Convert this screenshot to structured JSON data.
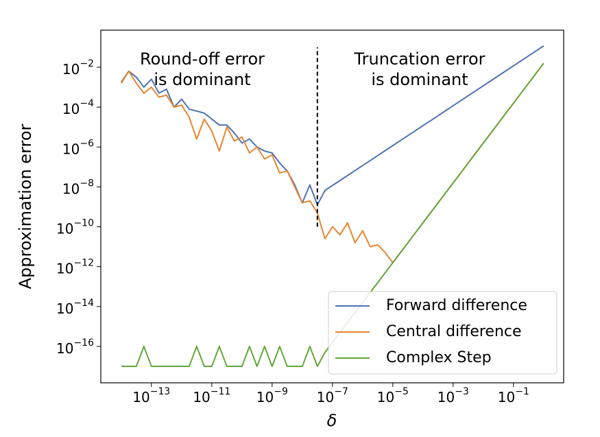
{
  "chart_data": {
    "type": "line",
    "xlabel": "δ",
    "ylabel": "Approximation error",
    "xscale": "log",
    "yscale": "log",
    "xlim": [
      2.1e-15,
      4.6
    ],
    "ylim": [
      1.5e-18,
      0.72
    ],
    "xticks": [
      {
        "value": 1e-13,
        "label": "10−13"
      },
      {
        "value": 1e-11,
        "label": "10−11"
      },
      {
        "value": 1e-09,
        "label": "10−9"
      },
      {
        "value": 1e-07,
        "label": "10−7"
      },
      {
        "value": 1e-05,
        "label": "10−5"
      },
      {
        "value": 0.001,
        "label": "10−3"
      },
      {
        "value": 0.1,
        "label": "10−1"
      }
    ],
    "yticks": [
      {
        "value": 1e-16,
        "label": "10−16"
      },
      {
        "value": 1e-14,
        "label": "10−14"
      },
      {
        "value": 1e-12,
        "label": "10−12"
      },
      {
        "value": 1e-10,
        "label": "10−10"
      },
      {
        "value": 1e-08,
        "label": "10−8"
      },
      {
        "value": 1e-06,
        "label": "10−6"
      },
      {
        "value": 0.0001,
        "label": "10−4"
      },
      {
        "value": 0.01,
        "label": "10−2"
      }
    ],
    "legend": "lower right",
    "x": [
      1e-14,
      1.78e-14,
      3.16e-14,
      5.62e-14,
      1e-13,
      1.78e-13,
      3.16e-13,
      5.62e-13,
      1e-12,
      1.78e-12,
      3.16e-12,
      5.62e-12,
      1e-11,
      1.78e-11,
      3.16e-11,
      5.62e-11,
      1e-10,
      1.78e-10,
      3.16e-10,
      5.62e-10,
      1e-09,
      1.78e-09,
      3.16e-09,
      5.62e-09,
      1e-08,
      1.78e-08,
      3.16e-08,
      5.62e-08,
      1e-07,
      1.78e-07,
      3.16e-07,
      5.62e-07,
      1e-06,
      1.78e-06,
      3.16e-06,
      5.62e-06,
      1e-05,
      1.78e-05,
      3.16e-05,
      5.62e-05,
      0.0001,
      0.000178,
      0.000316,
      0.000562,
      0.001,
      0.00178,
      0.00316,
      0.00562,
      0.01,
      0.0178,
      0.0316,
      0.0562,
      0.1,
      0.178,
      0.316,
      0.562,
      1
    ],
    "series": [
      {
        "name": "Forward difference",
        "color": "#4c72b0",
        "values": [
          0.00178,
          0.00631,
          0.00316,
          0.001,
          0.00251,
          0.000501,
          0.000794,
          0.0001,
          0.000251,
          7.94e-05,
          6.31e-05,
          5.01e-05,
          2.51e-05,
          1.26e-05,
          1.26e-05,
          5.01e-06,
          1.58e-06,
          2.51e-06,
          1e-06,
          6.31e-07,
          5.01e-07,
          1.58e-07,
          6.31e-08,
          1.26e-08,
          1.58e-09,
          1.26e-08,
          1.26e-09,
          6.6e-09,
          1.175e-08,
          2.09e-08,
          3.71e-08,
          6.6e-08,
          1.175e-07,
          2.09e-07,
          3.71e-07,
          6.6e-07,
          1.175e-06,
          2.09e-06,
          3.71e-06,
          6.6e-06,
          1.175e-05,
          2.09e-05,
          3.71e-05,
          6.6e-05,
          0.0001175,
          0.000209,
          0.000371,
          0.00066,
          0.001175,
          0.00209,
          0.00371,
          0.0066,
          0.01175,
          0.0209,
          0.0371,
          0.066,
          0.1175
        ]
      },
      {
        "name": "Central difference",
        "color": "#e88430",
        "values": [
          0.00158,
          0.00631,
          0.00158,
          0.000501,
          0.001,
          0.000316,
          0.000398,
          0.0001,
          0.000126,
          3.16e-05,
          2.51e-06,
          2.51e-05,
          6.31e-06,
          6.31e-07,
          1e-05,
          2e-06,
          3.16e-06,
          5.01e-07,
          1e-06,
          2.51e-07,
          3.98e-07,
          5.01e-08,
          6.31e-08,
          1e-08,
          1.58e-09,
          2e-09,
          5.01e-10,
          2.51e-11,
          1e-10,
          3.98e-11,
          1.58e-10,
          1.58e-11,
          6.31e-11,
          1e-11,
          1.26e-11,
          5.01e-12,
          1.58e-12,
          5e-12,
          1.58e-11,
          5e-11,
          1.58e-10,
          5e-10,
          1.58e-09,
          5e-09,
          1.58e-08,
          5e-08,
          1.58e-07,
          5e-07,
          1.58e-06,
          5e-06,
          1.58e-05,
          5e-05,
          0.000158,
          0.0005,
          0.00158,
          0.005,
          0.0158
        ]
      },
      {
        "name": "Complex Step",
        "color": "#62a63b",
        "values": [
          1e-17,
          1e-17,
          1e-17,
          1e-16,
          1e-17,
          1e-17,
          1e-17,
          1e-17,
          1e-17,
          1e-17,
          1e-16,
          1e-17,
          1e-17,
          1e-16,
          1e-17,
          1e-17,
          1e-17,
          1e-16,
          1e-17,
          1e-16,
          1e-17,
          1e-16,
          1e-17,
          1e-17,
          1e-17,
          1e-16,
          1e-17,
          5e-17,
          1.58e-16,
          5e-16,
          1.58e-15,
          5e-15,
          1.58e-14,
          5e-14,
          1.58e-13,
          5e-13,
          1.58e-12,
          5e-12,
          1.58e-11,
          5e-11,
          1.58e-10,
          5e-10,
          1.58e-09,
          5e-09,
          1.58e-08,
          5e-08,
          1.58e-07,
          5e-07,
          1.58e-06,
          5e-06,
          1.58e-05,
          5e-05,
          0.000158,
          0.0005,
          0.00158,
          0.005,
          0.0158
        ]
      }
    ],
    "vline": {
      "x": 3.16e-08,
      "ymin": 1e-10,
      "ymax": 0.1
    },
    "annotations": [
      {
        "lines": [
          "Round-off error",
          "is dominant"
        ]
      },
      {
        "lines": [
          "Truncation error",
          "is dominant"
        ]
      }
    ]
  }
}
